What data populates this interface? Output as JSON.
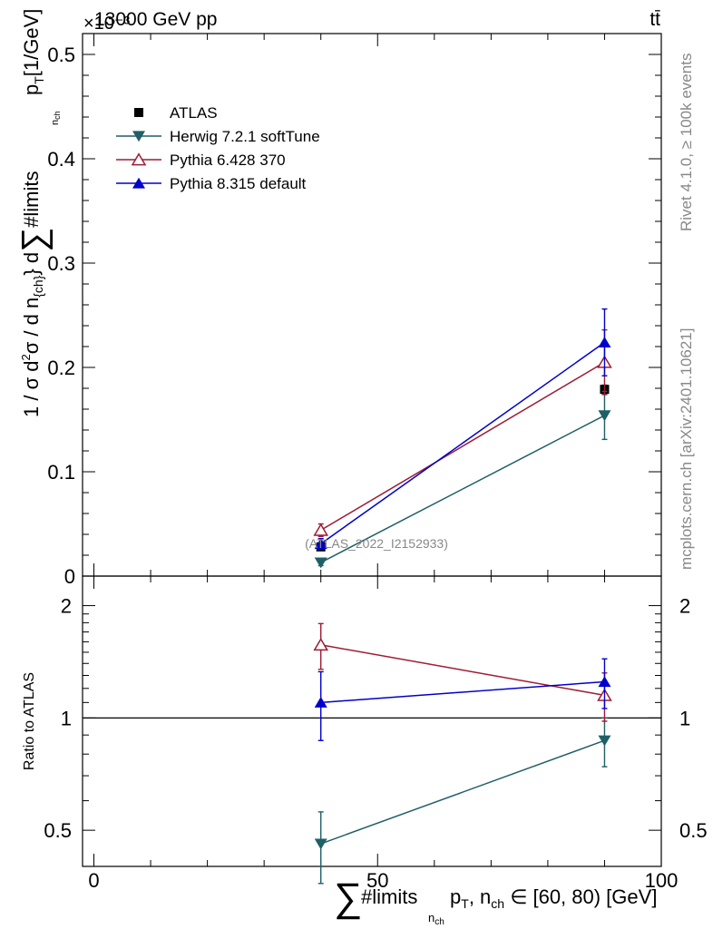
{
  "header": {
    "exponent_label": "×10⁻³",
    "process": "13000 GeV pp",
    "final_state": "tt̄"
  },
  "side_labels": {
    "rivet": "Rivet 4.1.0, ≥ 100k events",
    "source": "mcplots.cern.ch [arXiv:2401.10621]"
  },
  "analysis_tag": "(ATLAS_2022_I2152933)",
  "chart_data": [
    {
      "type": "line",
      "panel": "main",
      "ylabel_parts": [
        "1 / σ d",
        "2",
        "σ / d n",
        "{ch}",
        "} d",
        "∑",
        "#limits",
        "n",
        "ch",
        "p",
        "T",
        "[1/GeV]"
      ],
      "yscale_factor": 0.001,
      "xlim": [
        -2,
        100
      ],
      "ylim": [
        0,
        0.52
      ],
      "yticks": [
        0,
        0.1,
        0.2,
        0.3,
        0.4,
        0.5
      ],
      "ytick_labels": [
        "0",
        "0.1",
        "0.2",
        "0.3",
        "0.4",
        "0.5"
      ],
      "legend_position": "top-left",
      "series": [
        {
          "name": "ATLAS",
          "color": "#000000",
          "marker": "square",
          "connect": false,
          "x": [
            40,
            90
          ],
          "y": [
            0.028,
            0.179
          ],
          "err": [
            0.003,
            0.004
          ]
        },
        {
          "name": "Herwig 7.2.1 softTune",
          "color": "#1f5f66",
          "marker": "triangle-down",
          "connect": true,
          "x": [
            40,
            90
          ],
          "y": [
            0.013,
            0.154
          ],
          "err": [
            0.003,
            0.023
          ]
        },
        {
          "name": "Pythia 6.428 370",
          "color": "#9e1b32",
          "marker": "triangle-up-open",
          "connect": true,
          "x": [
            40,
            90
          ],
          "y": [
            0.044,
            0.205
          ],
          "err": [
            0.006,
            0.031
          ]
        },
        {
          "name": "Pythia 8.315 default",
          "color": "#0000cc",
          "marker": "triangle-up",
          "connect": true,
          "x": [
            40,
            90
          ],
          "y": [
            0.031,
            0.224
          ],
          "err": [
            0.005,
            0.032
          ]
        }
      ]
    },
    {
      "type": "line",
      "panel": "ratio",
      "ylabel": "Ratio to ATLAS",
      "xlabel_parts": [
        "∑",
        "#limits",
        "n",
        "ch",
        "p",
        "T",
        ", n",
        "ch",
        " ∈ [60, 80) [GeV]"
      ],
      "xlim": [
        -2,
        100
      ],
      "xticks": [
        0,
        50,
        100
      ],
      "xtick_labels": [
        "0",
        "50",
        "100"
      ],
      "ylim": [
        0.4,
        2.4
      ],
      "yscale": "log",
      "yticks": [
        0.5,
        1,
        2
      ],
      "ytick_labels": [
        "0.5",
        "1",
        "2"
      ],
      "reference": 1,
      "series": [
        {
          "name": "Herwig 7.2.1 softTune",
          "color": "#1f5f66",
          "marker": "triangle-down",
          "x": [
            40,
            90
          ],
          "y": [
            0.46,
            0.87
          ],
          "err": [
            0.1,
            0.13
          ]
        },
        {
          "name": "Pythia 6.428 370",
          "color": "#9e1b32",
          "marker": "triangle-up-open",
          "x": [
            40,
            90
          ],
          "y": [
            1.57,
            1.15
          ],
          "err": [
            0.22,
            0.17
          ]
        },
        {
          "name": "Pythia 8.315 default",
          "color": "#0000cc",
          "marker": "triangle-up",
          "x": [
            40,
            90
          ],
          "y": [
            1.1,
            1.25
          ],
          "err": [
            0.23,
            0.19
          ]
        }
      ]
    }
  ]
}
